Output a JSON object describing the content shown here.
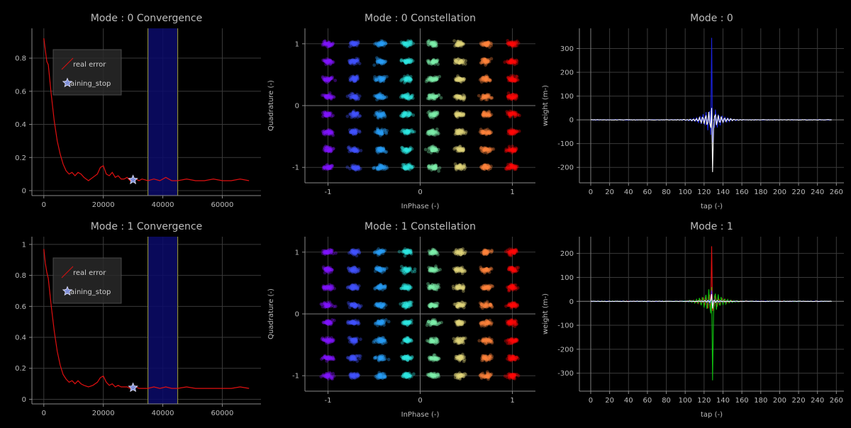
{
  "theme": {
    "background": "#000000",
    "axis": "#8a8a8a",
    "grid": "#3a3a3a",
    "text": "#bbbbbb",
    "title": "#bdbdbd"
  },
  "chart_data": [
    {
      "id": "conv0",
      "type": "line",
      "title": "Mode : 0 Convergence",
      "xlim": [
        -4000,
        73000
      ],
      "ylim": [
        -0.03,
        0.98
      ],
      "xticks": [
        0,
        20000,
        40000,
        60000
      ],
      "yticks": [
        0,
        0.2,
        0.4,
        0.6,
        0.8
      ],
      "legend": {
        "position": "upper-left",
        "entries": [
          {
            "label": "real error",
            "color": "#e01010"
          },
          {
            "label": "training_stop",
            "color": "#9fb0ff"
          }
        ]
      },
      "series": [
        {
          "name": "real error",
          "color": "#e01010",
          "x": [
            0,
            500,
            1000,
            1500,
            2500,
            3500,
            4500,
            5500,
            6500,
            7500,
            8500,
            9500,
            10500,
            11500,
            12500,
            13500,
            15000,
            16500,
            18000,
            19000,
            20000,
            21000,
            22000,
            23000,
            24000,
            25000,
            26000,
            27000,
            28000,
            29000,
            30000,
            31000,
            32000,
            33000,
            35000,
            37000,
            39000,
            41000,
            43000,
            45000,
            48000,
            51000,
            54000,
            57000,
            60000,
            63000,
            66000,
            69000
          ],
          "y": [
            0.92,
            0.85,
            0.78,
            0.76,
            0.58,
            0.42,
            0.3,
            0.22,
            0.16,
            0.12,
            0.1,
            0.11,
            0.09,
            0.11,
            0.1,
            0.08,
            0.06,
            0.08,
            0.1,
            0.14,
            0.15,
            0.1,
            0.09,
            0.11,
            0.08,
            0.09,
            0.07,
            0.07,
            0.08,
            0.06,
            0.06,
            0.07,
            0.06,
            0.07,
            0.06,
            0.07,
            0.06,
            0.08,
            0.06,
            0.06,
            0.07,
            0.06,
            0.06,
            0.07,
            0.06,
            0.06,
            0.07,
            0.06
          ]
        }
      ],
      "marker": {
        "label": "training_stop",
        "x": 30000,
        "y": 0.065
      },
      "vlines": [
        {
          "x": 35000,
          "color": "#8a8a3a"
        },
        {
          "x": 45000,
          "color": "#8a8a3a"
        }
      ],
      "span": {
        "x0": 35000,
        "x1": 45000,
        "color": "#0b0b6a"
      }
    },
    {
      "id": "const0",
      "type": "scatter",
      "title": "Mode : 0 Constellation",
      "xlabel": "InPhase (-)",
      "ylabel": "Quadrature (-)",
      "xlim": [
        -1.25,
        1.25
      ],
      "ylim": [
        -1.25,
        1.25
      ],
      "xticks": [
        -1,
        0,
        1
      ],
      "yticks": [
        -1,
        0,
        1
      ],
      "levels": [
        -1.0,
        -0.714,
        -0.429,
        -0.143,
        0.143,
        0.429,
        0.714,
        1.0
      ],
      "colormap": "rainbow"
    },
    {
      "id": "w0",
      "type": "line",
      "title": "Mode : 0",
      "xlabel": "tap (-)",
      "ylabel": "weight (m-)",
      "xlim": [
        -12,
        268
      ],
      "ylim": [
        -265,
        385
      ],
      "xticks": [
        0,
        20,
        40,
        60,
        80,
        100,
        120,
        140,
        160,
        180,
        200,
        220,
        240,
        260
      ],
      "yticks": [
        -200,
        -100,
        0,
        100,
        200,
        300
      ],
      "center": 128,
      "series": [
        {
          "name": "blue",
          "color": "#1a22dd",
          "peak": 345,
          "trough": -95
        },
        {
          "name": "white",
          "color": "#ffffff",
          "peak": 50,
          "trough": -220
        }
      ]
    },
    {
      "id": "conv1",
      "type": "line",
      "title": "Mode : 1 Convergence",
      "xlim": [
        -4000,
        73000
      ],
      "ylim": [
        -0.03,
        1.05
      ],
      "xticks": [
        0,
        20000,
        40000,
        60000
      ],
      "yticks": [
        0,
        0.2,
        0.4,
        0.6,
        0.8,
        1
      ],
      "legend": {
        "position": "upper-left",
        "entries": [
          {
            "label": "real error",
            "color": "#e01010"
          },
          {
            "label": "training_stop",
            "color": "#9fb0ff"
          }
        ]
      },
      "series": [
        {
          "name": "real error",
          "color": "#e01010",
          "x": [
            0,
            500,
            1000,
            1500,
            2500,
            3500,
            4500,
            5500,
            6500,
            7500,
            8500,
            9500,
            10500,
            11500,
            12500,
            13500,
            15000,
            16500,
            18000,
            19000,
            20000,
            21000,
            22000,
            23000,
            24000,
            25000,
            26000,
            27000,
            28000,
            29000,
            30000,
            31000,
            32000,
            33000,
            35000,
            37000,
            39000,
            41000,
            43000,
            45000,
            48000,
            51000,
            54000,
            57000,
            60000,
            63000,
            66000,
            69000
          ],
          "y": [
            0.97,
            0.88,
            0.82,
            0.78,
            0.6,
            0.44,
            0.31,
            0.22,
            0.16,
            0.13,
            0.11,
            0.12,
            0.1,
            0.12,
            0.1,
            0.09,
            0.08,
            0.09,
            0.11,
            0.14,
            0.15,
            0.11,
            0.09,
            0.1,
            0.08,
            0.09,
            0.08,
            0.08,
            0.08,
            0.07,
            0.07,
            0.08,
            0.07,
            0.07,
            0.07,
            0.08,
            0.07,
            0.08,
            0.07,
            0.07,
            0.08,
            0.07,
            0.07,
            0.07,
            0.07,
            0.07,
            0.08,
            0.07
          ]
        }
      ],
      "marker": {
        "label": "training_stop",
        "x": 30000,
        "y": 0.075
      },
      "vlines": [
        {
          "x": 35000,
          "color": "#8a8a3a"
        },
        {
          "x": 45000,
          "color": "#8a8a3a"
        }
      ],
      "span": {
        "x0": 35000,
        "x1": 45000,
        "color": "#0b0b6a"
      }
    },
    {
      "id": "const1",
      "type": "scatter",
      "title": "Mode : 1 Constellation",
      "xlabel": "InPhase (-)",
      "ylabel": "Quadrature (-)",
      "xlim": [
        -1.25,
        1.25
      ],
      "ylim": [
        -1.25,
        1.25
      ],
      "xticks": [
        -1,
        0,
        1
      ],
      "yticks": [
        -1,
        0,
        1
      ],
      "levels": [
        -1.0,
        -0.714,
        -0.429,
        -0.143,
        0.143,
        0.429,
        0.714,
        1.0
      ],
      "colormap": "rainbow"
    },
    {
      "id": "w1",
      "type": "line",
      "title": "Mode : 1",
      "xlabel": "tap (-)",
      "ylabel": "weight (m-)",
      "xlim": [
        -12,
        268
      ],
      "ylim": [
        -375,
        270
      ],
      "xticks": [
        0,
        20,
        40,
        60,
        80,
        100,
        120,
        140,
        160,
        180,
        200,
        220,
        240,
        260
      ],
      "yticks": [
        -300,
        -200,
        -100,
        0,
        100,
        200
      ],
      "center": 128,
      "series": [
        {
          "name": "red",
          "color": "#e01010",
          "peak": 230,
          "trough": -40
        },
        {
          "name": "green",
          "color": "#10c010",
          "peak": 60,
          "trough": -330
        },
        {
          "name": "blue",
          "color": "#2a30ff",
          "peak": 45,
          "trough": -25
        },
        {
          "name": "white",
          "color": "#ffffff",
          "peak": 30,
          "trough": -30
        }
      ]
    }
  ]
}
